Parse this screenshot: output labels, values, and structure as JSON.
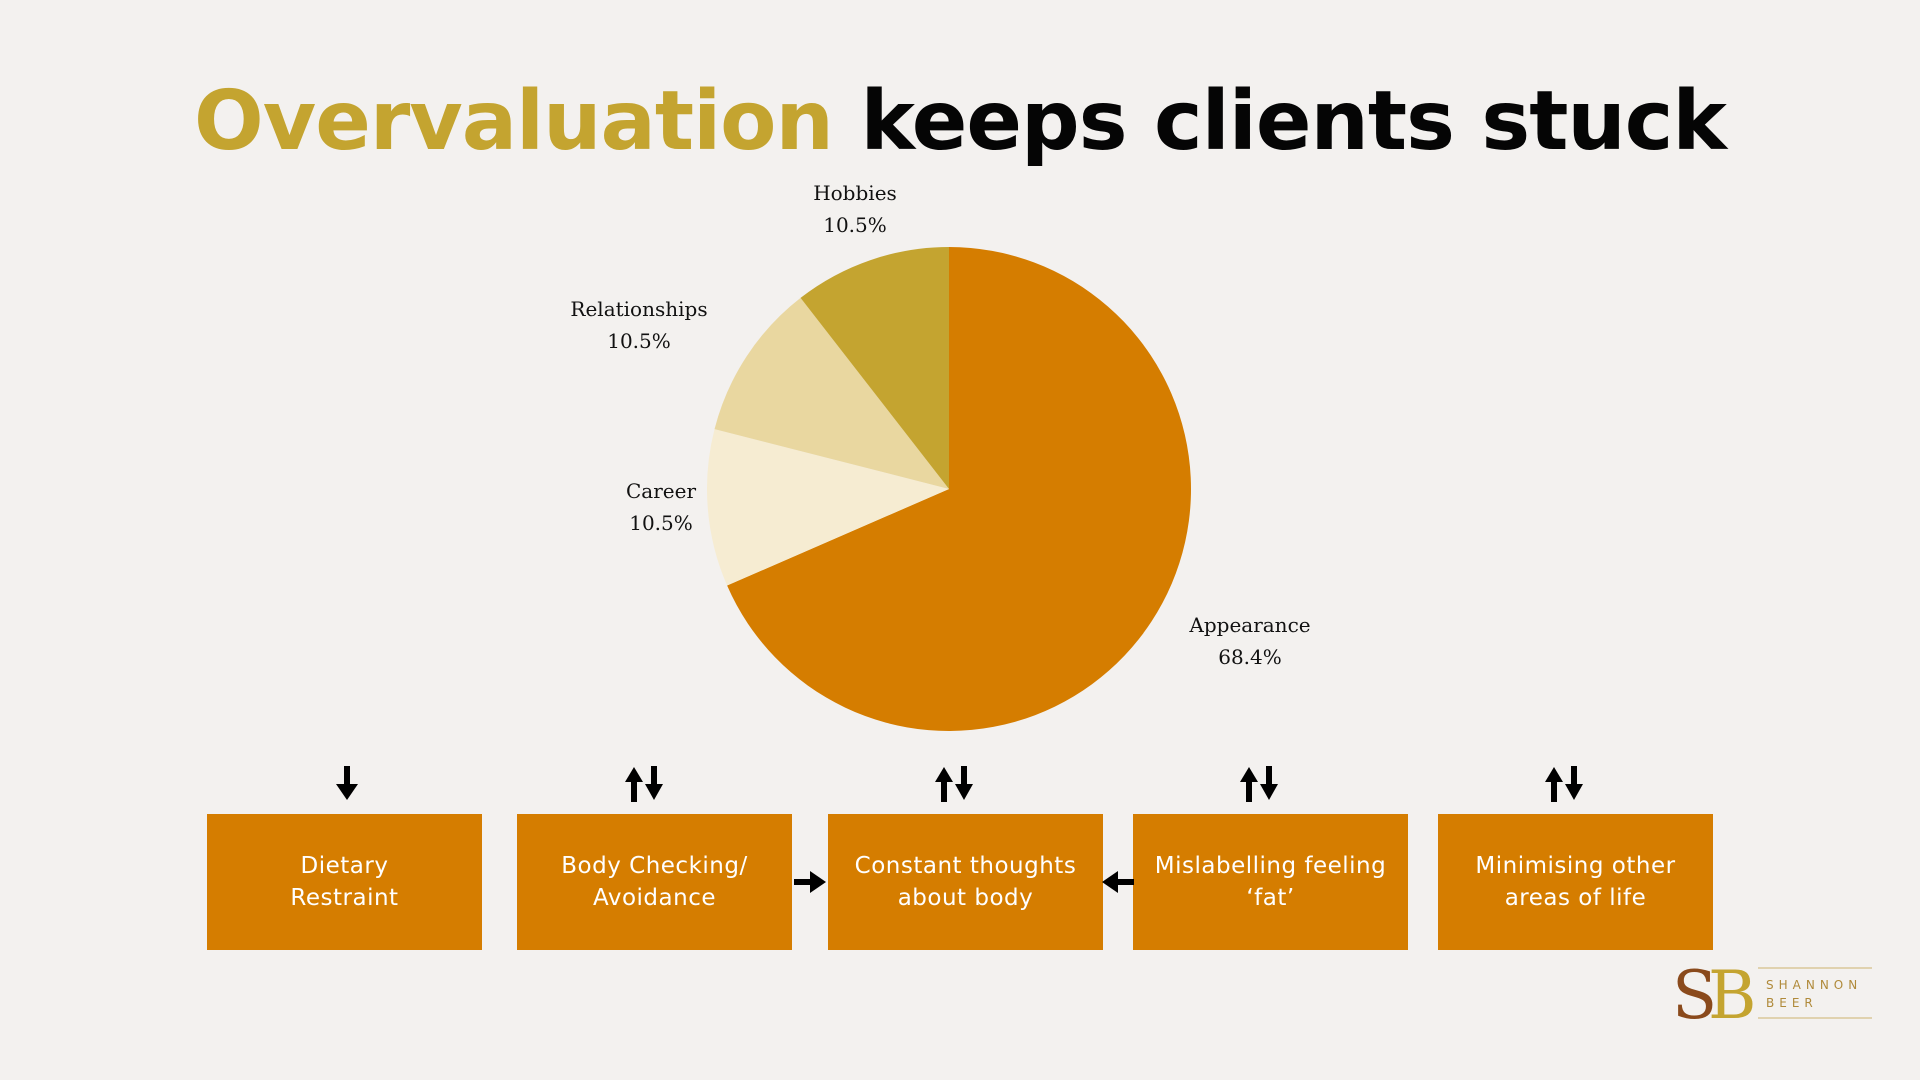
{
  "title": {
    "accent": "Overvaluation",
    "rest": " keeps clients stuck",
    "accent_color": "#c4a430"
  },
  "chart_data": {
    "type": "pie",
    "slices": [
      {
        "label": "Appearance",
        "value": 68.4,
        "display": "68.4%",
        "color": "#d57d00"
      },
      {
        "label": "Career",
        "value": 10.5,
        "display": "10.5%",
        "color": "#f6ecd2"
      },
      {
        "label": "Relationships",
        "value": 10.5,
        "display": "10.5%",
        "color": "#e9d7a0"
      },
      {
        "label": "Hobbies",
        "value": 10.5,
        "display": "10.5%",
        "color": "#c4a430"
      }
    ]
  },
  "boxes": [
    {
      "text": "Dietary\nRestraint"
    },
    {
      "text": "Body Checking/\nAvoidance"
    },
    {
      "text": "Constant thoughts\nabout body"
    },
    {
      "text": "Mislabelling feeling\n‘fat’"
    },
    {
      "text": "Minimising other\nareas of life"
    }
  ],
  "arrows": {
    "box_1": "down-arrow-icon",
    "box_2": "up-down-arrows-icon",
    "box_3": "up-down-arrows-icon",
    "box_4": "up-down-arrows-icon",
    "box_5": "up-down-arrows-icon",
    "between_2_3": "right-arrow-icon",
    "between_4_3": "left-arrow-icon"
  },
  "logo": {
    "monogram": "SB",
    "name_line1": "SHANNON",
    "name_line2": "BEER",
    "colors": {
      "s": "#8a4a1c",
      "b": "#c4a430",
      "text": "#b08a3a"
    }
  }
}
